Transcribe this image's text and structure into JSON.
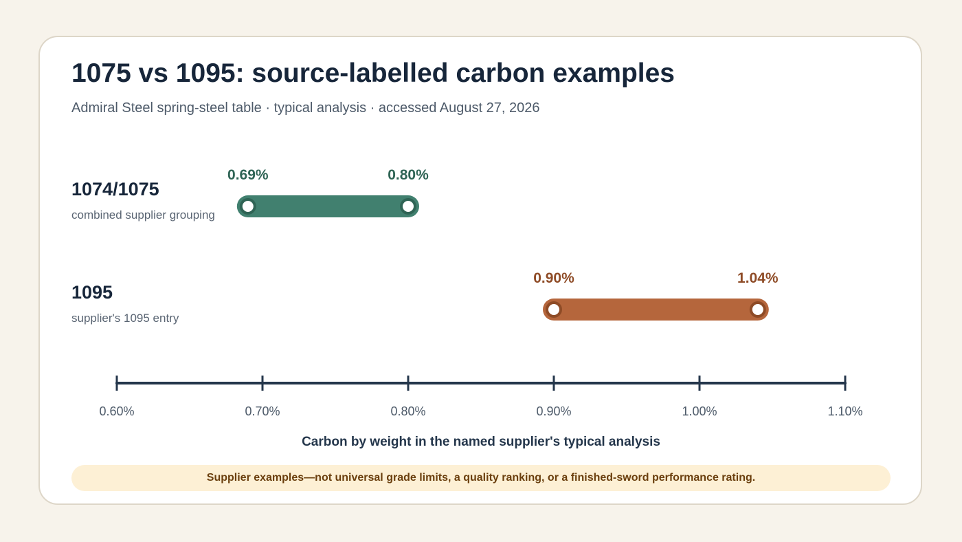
{
  "chart_data": {
    "type": "range-bar",
    "title": "1075 vs 1095: source-labelled carbon examples",
    "subtitle": "Admiral Steel spring-steel table · typical analysis · accessed August 27, 2026",
    "xlabel": "Carbon by weight in the named supplier's typical analysis",
    "xlim": [
      0.6,
      1.1
    ],
    "ticks": [
      0.6,
      0.7,
      0.8,
      0.9,
      1.0,
      1.1
    ],
    "tick_labels": [
      "0.60%",
      "0.70%",
      "0.80%",
      "0.90%",
      "1.00%",
      "1.10%"
    ],
    "series": [
      {
        "name": "1074/1075",
        "note": "combined supplier grouping",
        "min": 0.69,
        "max": 0.8,
        "min_label": "0.69%",
        "max_label": "0.80%",
        "color": "#41806f",
        "dark": "#2f6455"
      },
      {
        "name": "1095",
        "note": "supplier's 1095 entry",
        "min": 0.9,
        "max": 1.04,
        "min_label": "0.90%",
        "max_label": "1.04%",
        "color": "#b5663c",
        "dark": "#8e4b26"
      }
    ],
    "footnote": "Supplier examples—not universal grade limits, a quality ranking, or a finished-sword performance rating."
  },
  "colors": {
    "background": "#f7f3eb",
    "card": "#ffffff",
    "axis": "#24364b",
    "note_bg": "#fdf0d5",
    "note_text": "#6b3f0e"
  }
}
